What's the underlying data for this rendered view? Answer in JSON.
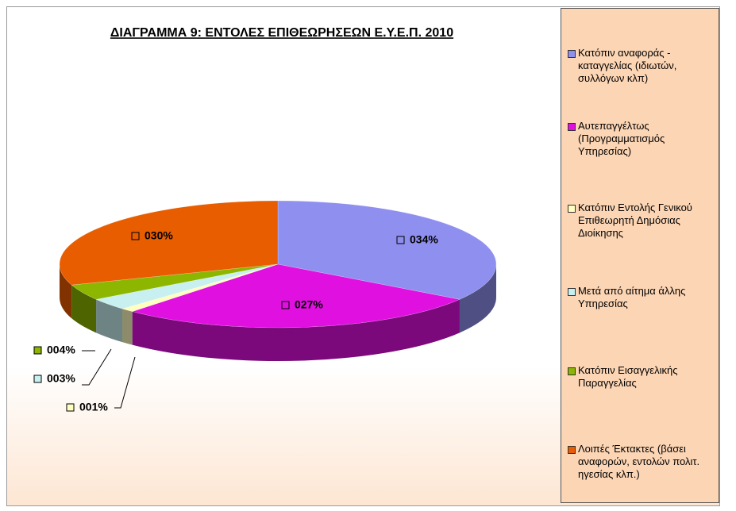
{
  "chart_data": {
    "type": "pie",
    "title": "ΔΙΑΓΡΑΜΜΑ 9: ΕΝΤΟΛΕΣ ΕΠΙΘΕΩΡΗΣΕΩΝ Ε.Υ.Ε.Π. 2010",
    "categories": [
      "Κατόπιν αναφοράς - καταγγελίας (ιδιωτών, συλλόγων κλπ)",
      "Αυτεπαγγέλτως (Προγραμματισμός Υπηρεσίας)",
      "Κατόπιν Εντολής Γενικού Επιθεωρητή Δημόσιας Διοίκησης",
      "Μετά από αίτημα άλλης Υπηρεσίας",
      "Κατόπιν Εισαγγελικής Παραγγελίας",
      "Λοιπές Έκτακτες (βάσει αναφορών, εντολών πολιτ. ηγεσίας κλπ.)"
    ],
    "values": [
      34,
      27,
      1,
      3,
      4,
      30
    ],
    "value_labels": [
      "034%",
      "027%",
      "001%",
      "003%",
      "004%",
      "030%"
    ],
    "colors": [
      "#8f8fef",
      "#e010e0",
      "#ffffc0",
      "#c8f0f0",
      "#8db600",
      "#e85d00"
    ],
    "legend": "right"
  }
}
